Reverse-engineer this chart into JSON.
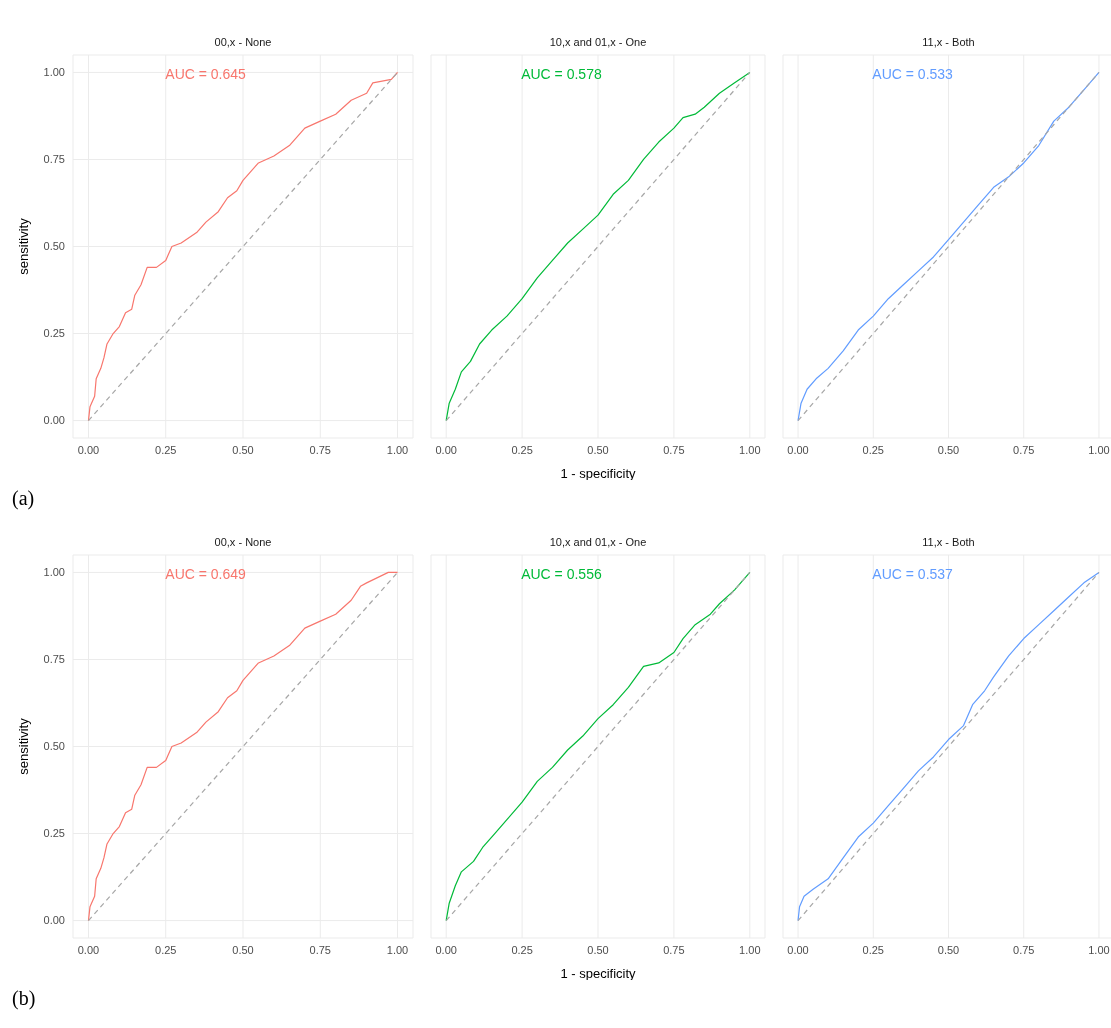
{
  "chart_data": [
    {
      "type": "line",
      "title": "00,x - None",
      "ylabel": "sensitivity",
      "annotations": [
        "AUC = 0.645",
        "(a)"
      ],
      "grid": true,
      "xlim": [
        -0.05,
        1.05
      ],
      "ylim": [
        -0.05,
        1.05
      ],
      "xticks": [
        {
          "value": 0,
          "label": "0.00"
        },
        {
          "value": 0.25,
          "label": "0.25"
        },
        {
          "value": 0.5,
          "label": "0.50"
        },
        {
          "value": 0.75,
          "label": "0.75"
        },
        {
          "value": 1,
          "label": "1.00"
        }
      ],
      "yticks": [
        {
          "value": 0,
          "label": "0.00"
        },
        {
          "value": 0.25,
          "label": "0.25"
        },
        {
          "value": 0.5,
          "label": "0.50"
        },
        {
          "value": 0.75,
          "label": "0.75"
        },
        {
          "value": 1,
          "label": "1.00"
        }
      ],
      "series": [
        {
          "color": "#f8766d",
          "x": [
            0,
            0.005,
            0.02,
            0.025,
            0.04,
            0.05,
            0.06,
            0.08,
            0.1,
            0.12,
            0.14,
            0.15,
            0.17,
            0.19,
            0.22,
            0.25,
            0.27,
            0.3,
            0.35,
            0.38,
            0.42,
            0.45,
            0.48,
            0.5,
            0.55,
            0.6,
            0.65,
            0.7,
            0.75,
            0.8,
            0.85,
            0.9,
            0.92,
            0.98,
            1
          ],
          "values": [
            0,
            0.04,
            0.07,
            0.12,
            0.15,
            0.18,
            0.22,
            0.25,
            0.27,
            0.31,
            0.32,
            0.36,
            0.39,
            0.44,
            0.44,
            0.46,
            0.5,
            0.51,
            0.54,
            0.57,
            0.6,
            0.64,
            0.66,
            0.69,
            0.74,
            0.76,
            0.79,
            0.84,
            0.86,
            0.88,
            0.92,
            0.94,
            0.97,
            0.98,
            1
          ]
        },
        {
          "type": "line",
          "color": "#a6a6a6",
          "line_style": "dashed",
          "x": [
            0,
            1
          ],
          "values": [
            0,
            1
          ]
        }
      ]
    },
    {
      "type": "line",
      "title": "10,x and 01,x - One",
      "xlabel": "1 - specificity",
      "annotations": [
        "AUC = 0.578"
      ],
      "grid": true,
      "tick_labels": "x",
      "xlim": [
        -0.05,
        1.05
      ],
      "ylim": [
        -0.05,
        1.05
      ],
      "xticks": [
        {
          "value": 0,
          "label": "0.00"
        },
        {
          "value": 0.25,
          "label": "0.25"
        },
        {
          "value": 0.5,
          "label": "0.50"
        },
        {
          "value": 0.75,
          "label": "0.75"
        },
        {
          "value": 1,
          "label": "1.00"
        }
      ],
      "series": [
        {
          "color": "#00ba38",
          "x": [
            0,
            0.01,
            0.03,
            0.05,
            0.08,
            0.11,
            0.15,
            0.2,
            0.25,
            0.3,
            0.35,
            0.4,
            0.45,
            0.5,
            0.55,
            0.6,
            0.65,
            0.7,
            0.75,
            0.78,
            0.82,
            0.85,
            0.9,
            0.95,
            1
          ],
          "values": [
            0,
            0.05,
            0.09,
            0.14,
            0.17,
            0.22,
            0.26,
            0.3,
            0.35,
            0.41,
            0.46,
            0.51,
            0.55,
            0.59,
            0.65,
            0.69,
            0.75,
            0.8,
            0.84,
            0.87,
            0.88,
            0.9,
            0.94,
            0.97,
            1
          ]
        },
        {
          "type": "line",
          "color": "#a6a6a6",
          "line_style": "dashed",
          "x": [
            0,
            1
          ],
          "values": [
            0,
            1
          ]
        }
      ]
    },
    {
      "type": "line",
      "title": "11,x - Both",
      "annotations": [
        "AUC = 0.533"
      ],
      "grid": true,
      "tick_labels": "x",
      "xlim": [
        -0.05,
        1.05
      ],
      "ylim": [
        -0.05,
        1.05
      ],
      "xticks": [
        {
          "value": 0,
          "label": "0.00"
        },
        {
          "value": 0.25,
          "label": "0.25"
        },
        {
          "value": 0.5,
          "label": "0.50"
        },
        {
          "value": 0.75,
          "label": "0.75"
        },
        {
          "value": 1,
          "label": "1.00"
        }
      ],
      "series": [
        {
          "color": "#619cff",
          "x": [
            0,
            0.01,
            0.03,
            0.06,
            0.1,
            0.15,
            0.2,
            0.25,
            0.3,
            0.35,
            0.4,
            0.45,
            0.5,
            0.55,
            0.6,
            0.65,
            0.7,
            0.75,
            0.8,
            0.85,
            0.9,
            0.95,
            1
          ],
          "values": [
            0,
            0.05,
            0.09,
            0.12,
            0.15,
            0.2,
            0.26,
            0.3,
            0.35,
            0.39,
            0.43,
            0.47,
            0.52,
            0.57,
            0.62,
            0.67,
            0.7,
            0.74,
            0.79,
            0.86,
            0.9,
            0.95,
            1
          ]
        },
        {
          "type": "line",
          "color": "#a6a6a6",
          "line_style": "dashed",
          "x": [
            0,
            1
          ],
          "values": [
            0,
            1
          ]
        }
      ]
    },
    {
      "type": "line",
      "title": "00,x - None",
      "ylabel": "sensitivity",
      "annotations": [
        "AUC = 0.649",
        "(b)"
      ],
      "grid": true,
      "xlim": [
        -0.05,
        1.05
      ],
      "ylim": [
        -0.05,
        1.05
      ],
      "xticks": [
        {
          "value": 0,
          "label": "0.00"
        },
        {
          "value": 0.25,
          "label": "0.25"
        },
        {
          "value": 0.5,
          "label": "0.50"
        },
        {
          "value": 0.75,
          "label": "0.75"
        },
        {
          "value": 1,
          "label": "1.00"
        }
      ],
      "yticks": [
        {
          "value": 0,
          "label": "0.00"
        },
        {
          "value": 0.25,
          "label": "0.25"
        },
        {
          "value": 0.5,
          "label": "0.50"
        },
        {
          "value": 0.75,
          "label": "0.75"
        },
        {
          "value": 1,
          "label": "1.00"
        }
      ],
      "series": [
        {
          "color": "#f8766d",
          "x": [
            0,
            0.005,
            0.02,
            0.025,
            0.04,
            0.05,
            0.06,
            0.08,
            0.1,
            0.12,
            0.14,
            0.15,
            0.17,
            0.19,
            0.22,
            0.25,
            0.27,
            0.3,
            0.35,
            0.38,
            0.42,
            0.45,
            0.48,
            0.5,
            0.55,
            0.6,
            0.65,
            0.7,
            0.75,
            0.8,
            0.85,
            0.88,
            0.9,
            0.97,
            1
          ],
          "values": [
            0,
            0.04,
            0.07,
            0.12,
            0.15,
            0.18,
            0.22,
            0.25,
            0.27,
            0.31,
            0.32,
            0.36,
            0.39,
            0.44,
            0.44,
            0.46,
            0.5,
            0.51,
            0.54,
            0.57,
            0.6,
            0.64,
            0.66,
            0.69,
            0.74,
            0.76,
            0.79,
            0.84,
            0.86,
            0.88,
            0.92,
            0.96,
            0.97,
            1,
            1
          ]
        },
        {
          "type": "line",
          "color": "#a6a6a6",
          "line_style": "dashed",
          "x": [
            0,
            1
          ],
          "values": [
            0,
            1
          ]
        }
      ]
    },
    {
      "type": "line",
      "title": "10,x and 01,x - One",
      "xlabel": "1 - specificity",
      "annotations": [
        "AUC = 0.556"
      ],
      "grid": true,
      "tick_labels": "x",
      "xlim": [
        -0.05,
        1.05
      ],
      "ylim": [
        -0.05,
        1.05
      ],
      "xticks": [
        {
          "value": 0,
          "label": "0.00"
        },
        {
          "value": 0.25,
          "label": "0.25"
        },
        {
          "value": 0.5,
          "label": "0.50"
        },
        {
          "value": 0.75,
          "label": "0.75"
        },
        {
          "value": 1,
          "label": "1.00"
        }
      ],
      "series": [
        {
          "color": "#00ba38",
          "x": [
            0,
            0.01,
            0.03,
            0.05,
            0.09,
            0.12,
            0.16,
            0.2,
            0.25,
            0.3,
            0.35,
            0.4,
            0.45,
            0.5,
            0.55,
            0.6,
            0.65,
            0.7,
            0.75,
            0.78,
            0.82,
            0.87,
            0.9,
            0.95,
            1
          ],
          "values": [
            0,
            0.05,
            0.1,
            0.14,
            0.17,
            0.21,
            0.25,
            0.29,
            0.34,
            0.4,
            0.44,
            0.49,
            0.53,
            0.58,
            0.62,
            0.67,
            0.73,
            0.74,
            0.77,
            0.81,
            0.85,
            0.88,
            0.91,
            0.95,
            1
          ]
        },
        {
          "type": "line",
          "color": "#a6a6a6",
          "line_style": "dashed",
          "x": [
            0,
            1
          ],
          "values": [
            0,
            1
          ]
        }
      ]
    },
    {
      "type": "line",
      "title": "11,x - Both",
      "annotations": [
        "AUC = 0.537"
      ],
      "grid": true,
      "tick_labels": "x",
      "xlim": [
        -0.05,
        1.05
      ],
      "ylim": [
        -0.05,
        1.05
      ],
      "xticks": [
        {
          "value": 0,
          "label": "0.00"
        },
        {
          "value": 0.25,
          "label": "0.25"
        },
        {
          "value": 0.5,
          "label": "0.50"
        },
        {
          "value": 0.75,
          "label": "0.75"
        },
        {
          "value": 1,
          "label": "1.00"
        }
      ],
      "series": [
        {
          "color": "#619cff",
          "x": [
            0,
            0.005,
            0.02,
            0.05,
            0.1,
            0.15,
            0.2,
            0.25,
            0.3,
            0.35,
            0.4,
            0.45,
            0.5,
            0.55,
            0.58,
            0.62,
            0.65,
            0.7,
            0.75,
            0.8,
            0.85,
            0.9,
            0.95,
            1
          ],
          "values": [
            0,
            0.04,
            0.07,
            0.09,
            0.12,
            0.18,
            0.24,
            0.28,
            0.33,
            0.38,
            0.43,
            0.47,
            0.52,
            0.56,
            0.62,
            0.66,
            0.7,
            0.76,
            0.81,
            0.85,
            0.89,
            0.93,
            0.97,
            1
          ]
        },
        {
          "type": "line",
          "color": "#a6a6a6",
          "line_style": "dashed",
          "x": [
            0,
            1
          ],
          "values": [
            0,
            1
          ]
        }
      ]
    }
  ]
}
